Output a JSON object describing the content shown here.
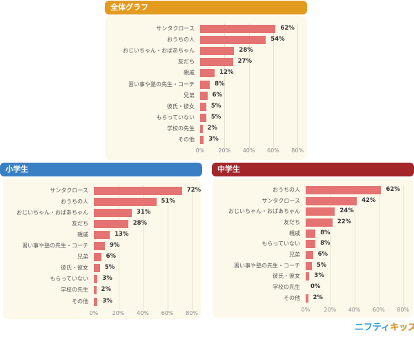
{
  "colors": {
    "overall_header": "#E29B1F",
    "elementary_header": "#3A7FC4",
    "junior_high_header": "#A3262A",
    "bar": "#E57373",
    "panel_bg": "#FCF9EA"
  },
  "panels": {
    "overall": {
      "title": "全体グラフ"
    },
    "elementary": {
      "title": "小学生"
    },
    "junior_high": {
      "title": "中学生"
    }
  },
  "axis_ticks": [
    "0%",
    "20%",
    "40%",
    "60%",
    "80%"
  ],
  "logo": {
    "part1": "ニフティ",
    "part2": "キッズ"
  },
  "chart_data": [
    {
      "type": "bar",
      "orientation": "horizontal",
      "title": "全体グラフ",
      "categories": [
        "サンタクロース",
        "おうちの人",
        "おじいちゃん・おばあちゃん",
        "友だち",
        "親戚",
        "習い事や塾の先生・コーチ",
        "兄弟",
        "彼氏・彼女",
        "もらっていない",
        "学校の先生",
        "その他"
      ],
      "values": [
        62,
        54,
        28,
        27,
        12,
        8,
        6,
        5,
        5,
        2,
        3
      ],
      "labels": [
        "62%",
        "54%",
        "28%",
        "27%",
        "12%",
        "8%",
        "6%",
        "5%",
        "5%",
        "2%",
        "3%"
      ],
      "xlim": [
        0,
        80
      ],
      "xticks": [
        "0%",
        "20%",
        "40%",
        "60%",
        "80%"
      ],
      "grid": true
    },
    {
      "type": "bar",
      "orientation": "horizontal",
      "title": "小学生",
      "categories": [
        "サンタクロース",
        "おうちの人",
        "おじいちゃん・おばあちゃん",
        "友だち",
        "親戚",
        "習い事や塾の先生・コーチ",
        "兄弟",
        "彼氏・彼女",
        "もらっていない",
        "学校の先生",
        "その他"
      ],
      "values": [
        72,
        51,
        31,
        28,
        13,
        9,
        6,
        5,
        3,
        2,
        3
      ],
      "labels": [
        "72%",
        "51%",
        "31%",
        "28%",
        "13%",
        "9%",
        "6%",
        "5%",
        "3%",
        "2%",
        "3%"
      ],
      "xlim": [
        0,
        80
      ],
      "xticks": [
        "0%",
        "20%",
        "40%",
        "60%",
        "80%"
      ],
      "grid": true
    },
    {
      "type": "bar",
      "orientation": "horizontal",
      "title": "中学生",
      "categories": [
        "おうちの人",
        "サンタクロース",
        "おじいちゃん・おばあちゃん",
        "友だち",
        "親戚",
        "もらっていない",
        "兄弟",
        "習い事や塾の先生・コーチ",
        "彼氏・彼女",
        "学校の先生",
        "その他"
      ],
      "values": [
        62,
        42,
        24,
        22,
        8,
        8,
        6,
        5,
        3,
        0,
        2
      ],
      "labels": [
        "62%",
        "42%",
        "24%",
        "22%",
        "8%",
        "8%",
        "6%",
        "5%",
        "3%",
        "0%",
        "2%"
      ],
      "xlim": [
        0,
        80
      ],
      "xticks": [
        "0%",
        "20%",
        "40%",
        "60%",
        "80%"
      ],
      "grid": true
    }
  ]
}
